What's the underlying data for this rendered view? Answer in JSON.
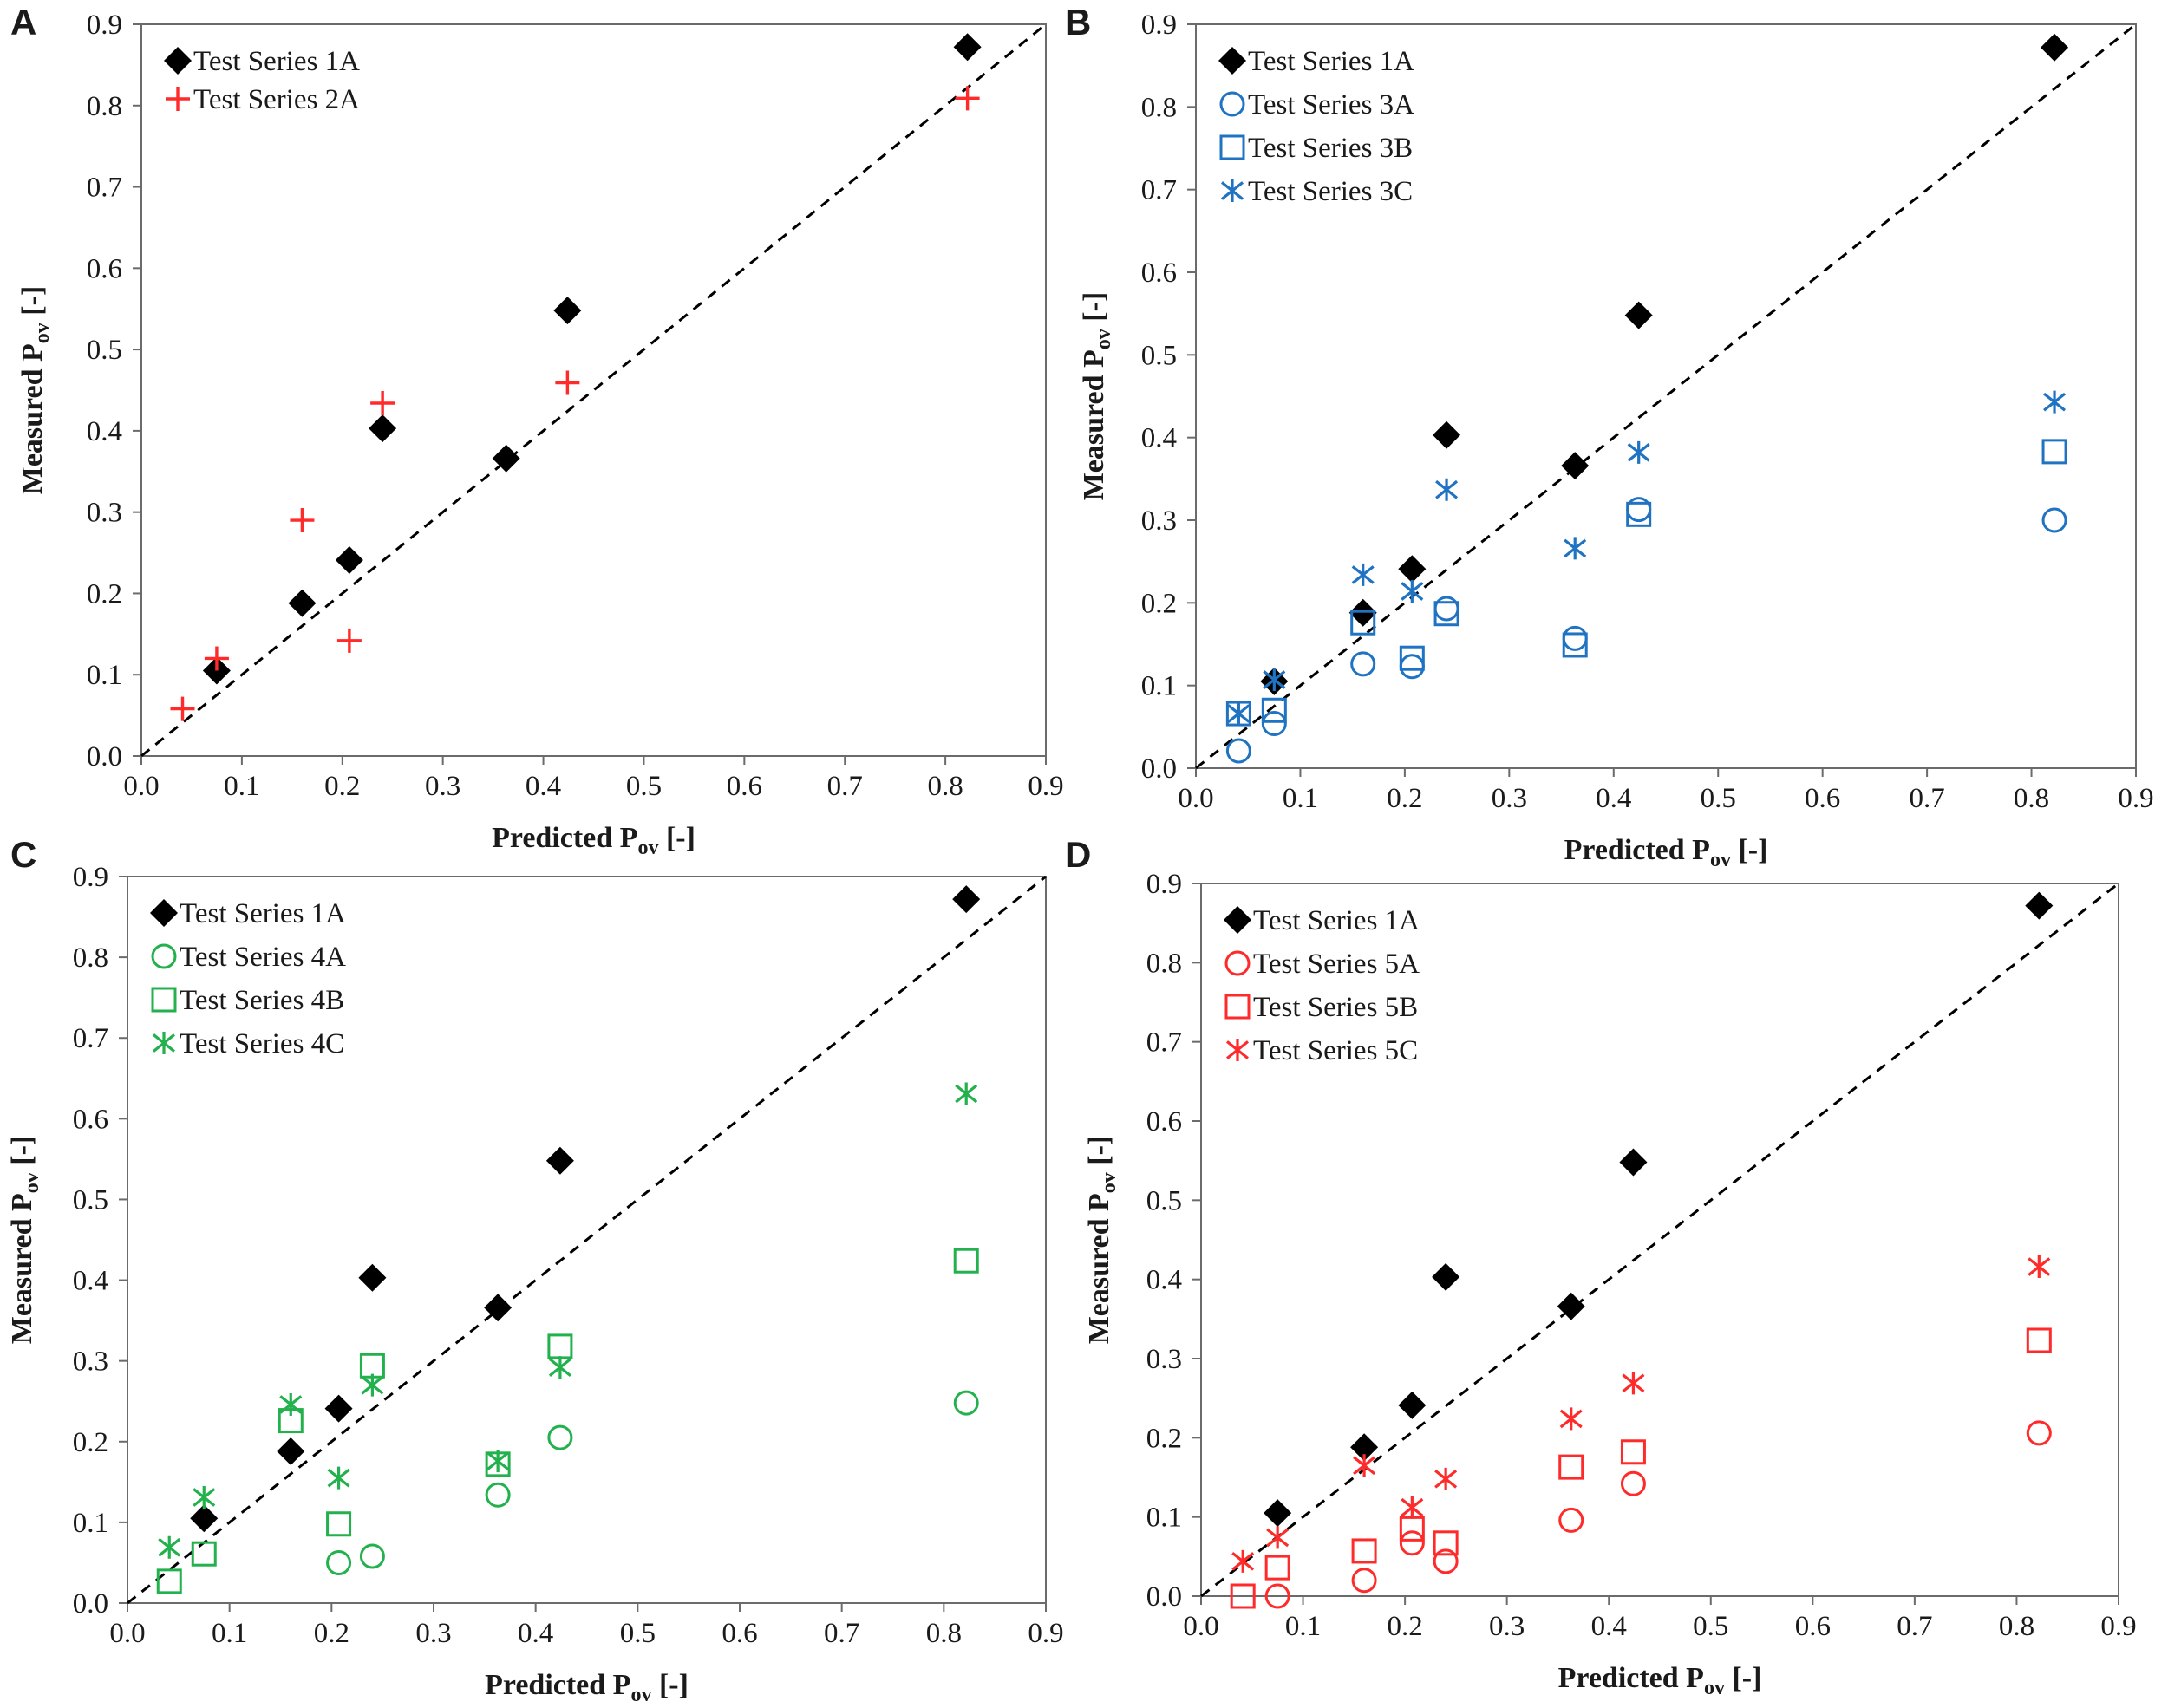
{
  "figure": {
    "background": "#ffffff"
  },
  "colors": {
    "black": "#000000",
    "red": "#ff2a2a",
    "blue": "#1f73c2",
    "green": "#22b14c",
    "diag": "#000000"
  },
  "chart_data": [
    {
      "panel": "A",
      "type": "scatter",
      "xlabel": "Predicted P",
      "xlabel_sub": "ov",
      "xlabel_suffix": " [-]",
      "ylabel": "Measured P",
      "ylabel_sub": "ov",
      "ylabel_suffix": " [-]",
      "xlim": [
        0,
        0.9
      ],
      "ylim": [
        0,
        0.9
      ],
      "xticks": [
        "0.0",
        "0.1",
        "0.2",
        "0.3",
        "0.4",
        "0.5",
        "0.6",
        "0.7",
        "0.8",
        "0.9"
      ],
      "yticks": [
        "0.0",
        "0.1",
        "0.2",
        "0.3",
        "0.4",
        "0.5",
        "0.6",
        "0.7",
        "0.8",
        "0.9"
      ],
      "reference_line": "y = x (dashed)",
      "legend_position": "top-left",
      "series": [
        {
          "name": "Test Series 1A",
          "marker": "diamond",
          "color": "#000000",
          "x": [
            0.075,
            0.16,
            0.207,
            0.24,
            0.363,
            0.424,
            0.822
          ],
          "y": [
            0.105,
            0.188,
            0.241,
            0.403,
            0.366,
            0.548,
            0.872
          ]
        },
        {
          "name": "Test Series 2A",
          "marker": "plus",
          "color": "#ff2a2a",
          "x": [
            0.041,
            0.075,
            0.16,
            0.207,
            0.24,
            0.424,
            0.822
          ],
          "y": [
            0.058,
            0.12,
            0.29,
            0.142,
            0.434,
            0.459,
            0.809
          ]
        }
      ]
    },
    {
      "panel": "B",
      "type": "scatter",
      "xlabel": "Predicted P",
      "xlabel_sub": "ov",
      "xlabel_suffix": " [-]",
      "ylabel": "Measured P",
      "ylabel_sub": "ov",
      "ylabel_suffix": " [-]",
      "xlim": [
        0,
        0.9
      ],
      "ylim": [
        0,
        0.9
      ],
      "xticks": [
        "0.0",
        "0.1",
        "0.2",
        "0.3",
        "0.4",
        "0.5",
        "0.6",
        "0.7",
        "0.8",
        "0.9"
      ],
      "yticks": [
        "0.0",
        "0.1",
        "0.2",
        "0.3",
        "0.4",
        "0.5",
        "0.6",
        "0.7",
        "0.8",
        "0.9"
      ],
      "reference_line": "y = x (dashed)",
      "legend_position": "top-left",
      "series": [
        {
          "name": "Test Series 1A",
          "marker": "diamond",
          "color": "#000000",
          "x": [
            0.075,
            0.16,
            0.207,
            0.24,
            0.363,
            0.424,
            0.822
          ],
          "y": [
            0.105,
            0.188,
            0.241,
            0.403,
            0.366,
            0.548,
            0.872
          ]
        },
        {
          "name": "Test Series 3A",
          "marker": "circle",
          "color": "#1f73c2",
          "x": [
            0.041,
            0.075,
            0.16,
            0.207,
            0.24,
            0.363,
            0.424,
            0.822
          ],
          "y": [
            0.021,
            0.054,
            0.126,
            0.123,
            0.193,
            0.157,
            0.313,
            0.3
          ]
        },
        {
          "name": "Test Series 3B",
          "marker": "square",
          "color": "#1f73c2",
          "x": [
            0.041,
            0.075,
            0.16,
            0.207,
            0.24,
            0.363,
            0.424,
            0.822
          ],
          "y": [
            0.066,
            0.07,
            0.176,
            0.133,
            0.187,
            0.149,
            0.307,
            0.383
          ]
        },
        {
          "name": "Test Series 3C",
          "marker": "asterisk",
          "color": "#1f73c2",
          "x": [
            0.041,
            0.075,
            0.16,
            0.207,
            0.24,
            0.363,
            0.424,
            0.822
          ],
          "y": [
            0.066,
            0.107,
            0.234,
            0.214,
            0.337,
            0.266,
            0.382,
            0.443
          ]
        }
      ]
    },
    {
      "panel": "C",
      "type": "scatter",
      "xlabel": "Predicted P",
      "xlabel_sub": "ov",
      "xlabel_suffix": " [-]",
      "ylabel": "Measured P",
      "ylabel_sub": "ov",
      "ylabel_suffix": " [-]",
      "xlim": [
        0,
        0.9
      ],
      "ylim": [
        0,
        0.9
      ],
      "xticks": [
        "0.0",
        "0.1",
        "0.2",
        "0.3",
        "0.4",
        "0.5",
        "0.6",
        "0.7",
        "0.8",
        "0.9"
      ],
      "yticks": [
        "0.0",
        "0.1",
        "0.2",
        "0.3",
        "0.4",
        "0.5",
        "0.6",
        "0.7",
        "0.8",
        "0.9"
      ],
      "reference_line": "y = x (dashed)",
      "legend_position": "top-left",
      "series": [
        {
          "name": "Test Series 1A",
          "marker": "diamond",
          "color": "#000000",
          "x": [
            0.075,
            0.16,
            0.207,
            0.24,
            0.363,
            0.424,
            0.822
          ],
          "y": [
            0.105,
            0.188,
            0.241,
            0.403,
            0.366,
            0.548,
            0.872
          ]
        },
        {
          "name": "Test Series 4A",
          "marker": "circle",
          "color": "#22b14c",
          "x": [
            0.207,
            0.24,
            0.363,
            0.424,
            0.822
          ],
          "y": [
            0.05,
            0.058,
            0.134,
            0.205,
            0.248
          ]
        },
        {
          "name": "Test Series 4B",
          "marker": "square",
          "color": "#22b14c",
          "x": [
            0.041,
            0.075,
            0.16,
            0.207,
            0.24,
            0.363,
            0.424,
            0.822
          ],
          "y": [
            0.027,
            0.061,
            0.226,
            0.098,
            0.294,
            0.172,
            0.318,
            0.424
          ]
        },
        {
          "name": "Test Series 4C",
          "marker": "asterisk",
          "color": "#22b14c",
          "x": [
            0.041,
            0.075,
            0.16,
            0.207,
            0.24,
            0.363,
            0.424,
            0.822
          ],
          "y": [
            0.069,
            0.131,
            0.246,
            0.155,
            0.27,
            0.176,
            0.292,
            0.631
          ]
        }
      ]
    },
    {
      "panel": "D",
      "type": "scatter",
      "xlabel": "Predicted P",
      "xlabel_sub": "ov",
      "xlabel_suffix": " [-]",
      "ylabel": "Measured P",
      "ylabel_sub": "ov",
      "ylabel_suffix": " [-]",
      "xlim": [
        0,
        0.9
      ],
      "ylim": [
        0,
        0.9
      ],
      "xticks": [
        "0.0",
        "0.1",
        "0.2",
        "0.3",
        "0.4",
        "0.5",
        "0.6",
        "0.7",
        "0.8",
        "0.9"
      ],
      "yticks": [
        "0.0",
        "0.1",
        "0.2",
        "0.3",
        "0.4",
        "0.5",
        "0.6",
        "0.7",
        "0.8",
        "0.9"
      ],
      "reference_line": "y = x (dashed)",
      "legend_position": "top-left",
      "series": [
        {
          "name": "Test Series 1A",
          "marker": "diamond",
          "color": "#000000",
          "x": [
            0.075,
            0.16,
            0.207,
            0.24,
            0.363,
            0.424,
            0.822
          ],
          "y": [
            0.105,
            0.188,
            0.241,
            0.403,
            0.366,
            0.548,
            0.872
          ]
        },
        {
          "name": "Test Series 5A",
          "marker": "circle",
          "color": "#ff2a2a",
          "x": [
            0.075,
            0.16,
            0.207,
            0.24,
            0.363,
            0.424,
            0.822
          ],
          "y": [
            0.0,
            0.02,
            0.067,
            0.044,
            0.096,
            0.142,
            0.206
          ]
        },
        {
          "name": "Test Series 5B",
          "marker": "square",
          "color": "#ff2a2a",
          "x": [
            0.041,
            0.075,
            0.16,
            0.207,
            0.24,
            0.363,
            0.424,
            0.822
          ],
          "y": [
            0.0,
            0.036,
            0.057,
            0.085,
            0.067,
            0.163,
            0.182,
            0.323
          ]
        },
        {
          "name": "Test Series 5C",
          "marker": "asterisk",
          "color": "#ff2a2a",
          "x": [
            0.041,
            0.075,
            0.16,
            0.207,
            0.24,
            0.363,
            0.424,
            0.822
          ],
          "y": [
            0.044,
            0.074,
            0.165,
            0.112,
            0.148,
            0.224,
            0.269,
            0.416
          ]
        }
      ]
    }
  ]
}
